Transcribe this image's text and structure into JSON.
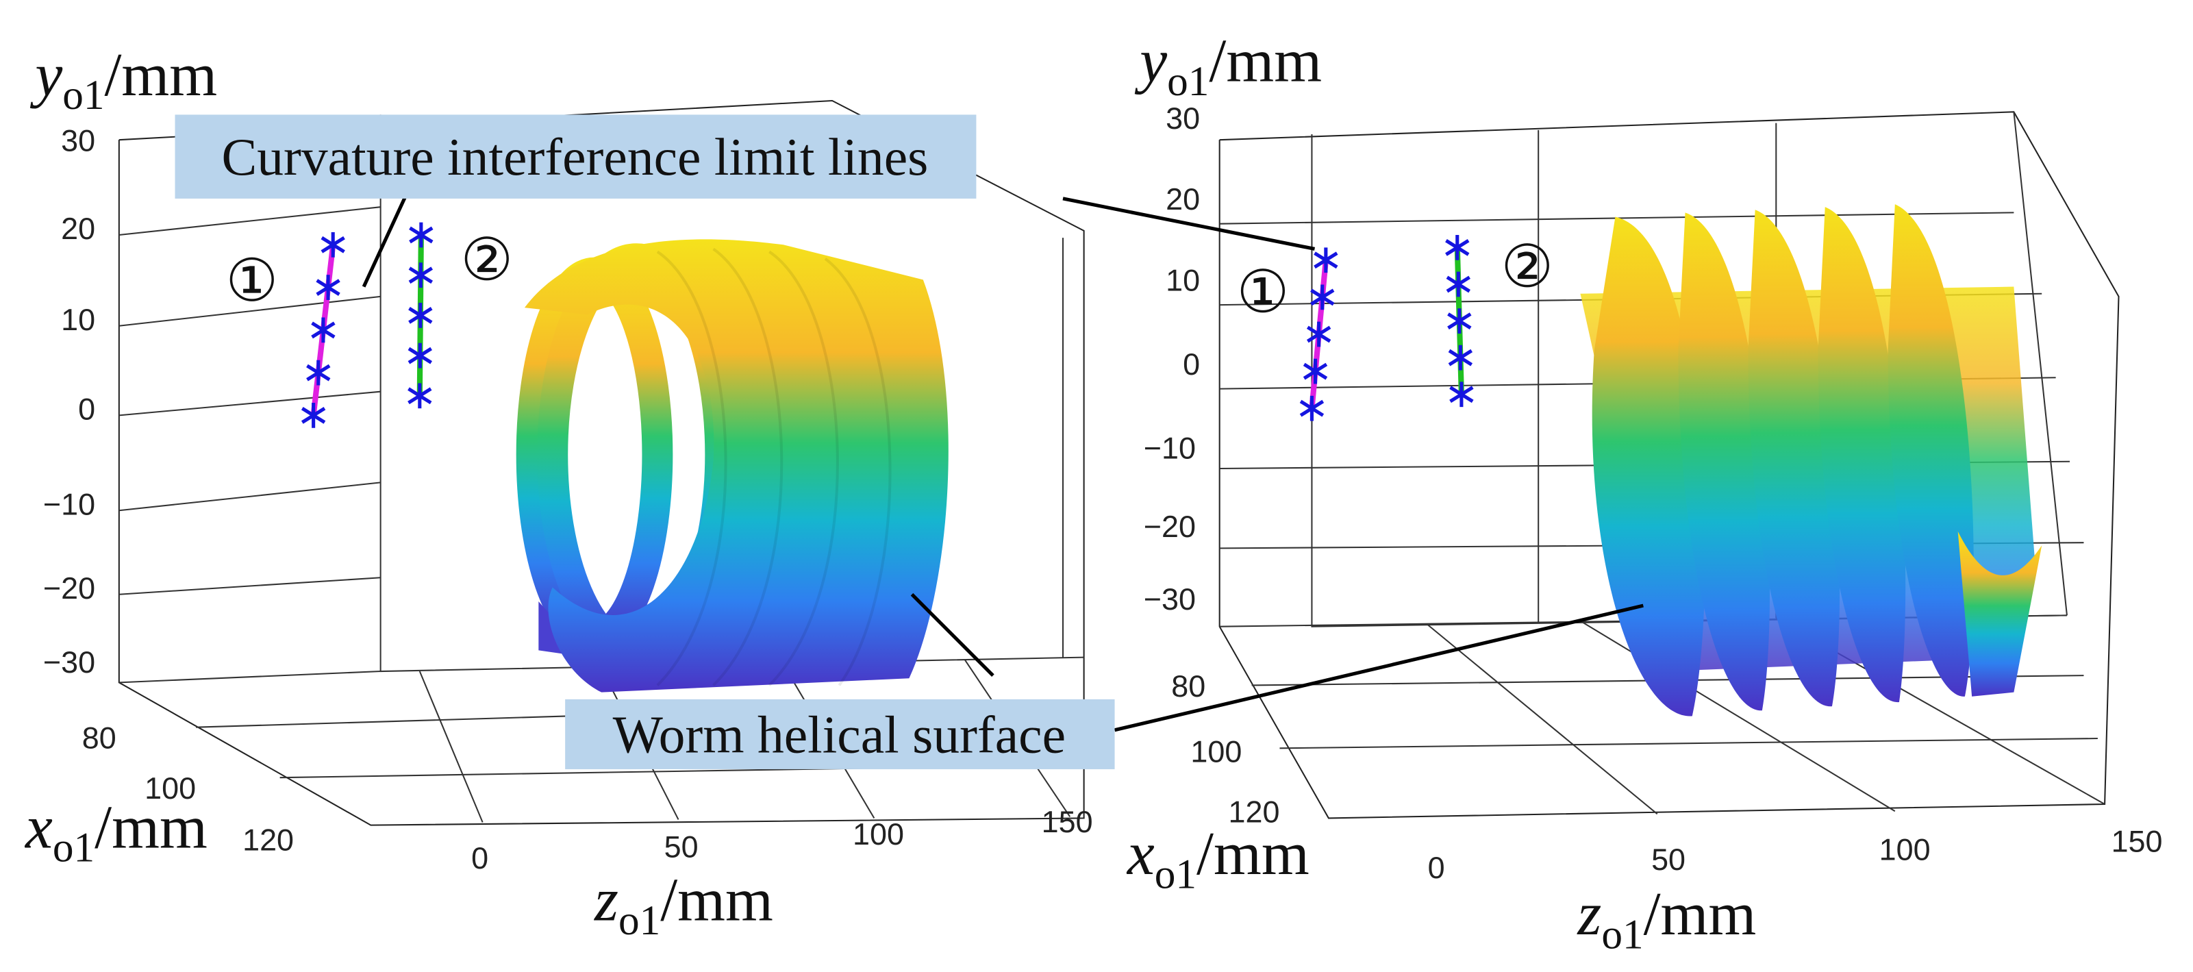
{
  "annotations": {
    "limit_lines": "Curvature interference limit lines",
    "surface": "Worm helical surface"
  },
  "panels": [
    {
      "y_label": [
        "y",
        "o1",
        "/mm"
      ],
      "x_label": [
        "x",
        "o1",
        "/mm"
      ],
      "z_label": [
        "z",
        "o1",
        "/mm"
      ],
      "line_labels": [
        "①",
        "②"
      ],
      "y_ticks": [
        "30",
        "20",
        "10",
        "0",
        "−10",
        "−20",
        "−30"
      ],
      "x_ticks": [
        "80",
        "100",
        "120"
      ],
      "z_ticks": [
        "0",
        "50",
        "100",
        "150"
      ]
    },
    {
      "y_label": [
        "y",
        "o1",
        "/mm"
      ],
      "x_label": [
        "x",
        "o1",
        "/mm"
      ],
      "z_label": [
        "z",
        "o1",
        "/mm"
      ],
      "line_labels": [
        "①",
        "②"
      ],
      "y_ticks": [
        "30",
        "20",
        "10",
        "0",
        "−10",
        "−20",
        "−30"
      ],
      "x_ticks": [
        "80",
        "100",
        "120"
      ],
      "z_ticks": [
        "0",
        "50",
        "100",
        "150"
      ]
    }
  ]
}
